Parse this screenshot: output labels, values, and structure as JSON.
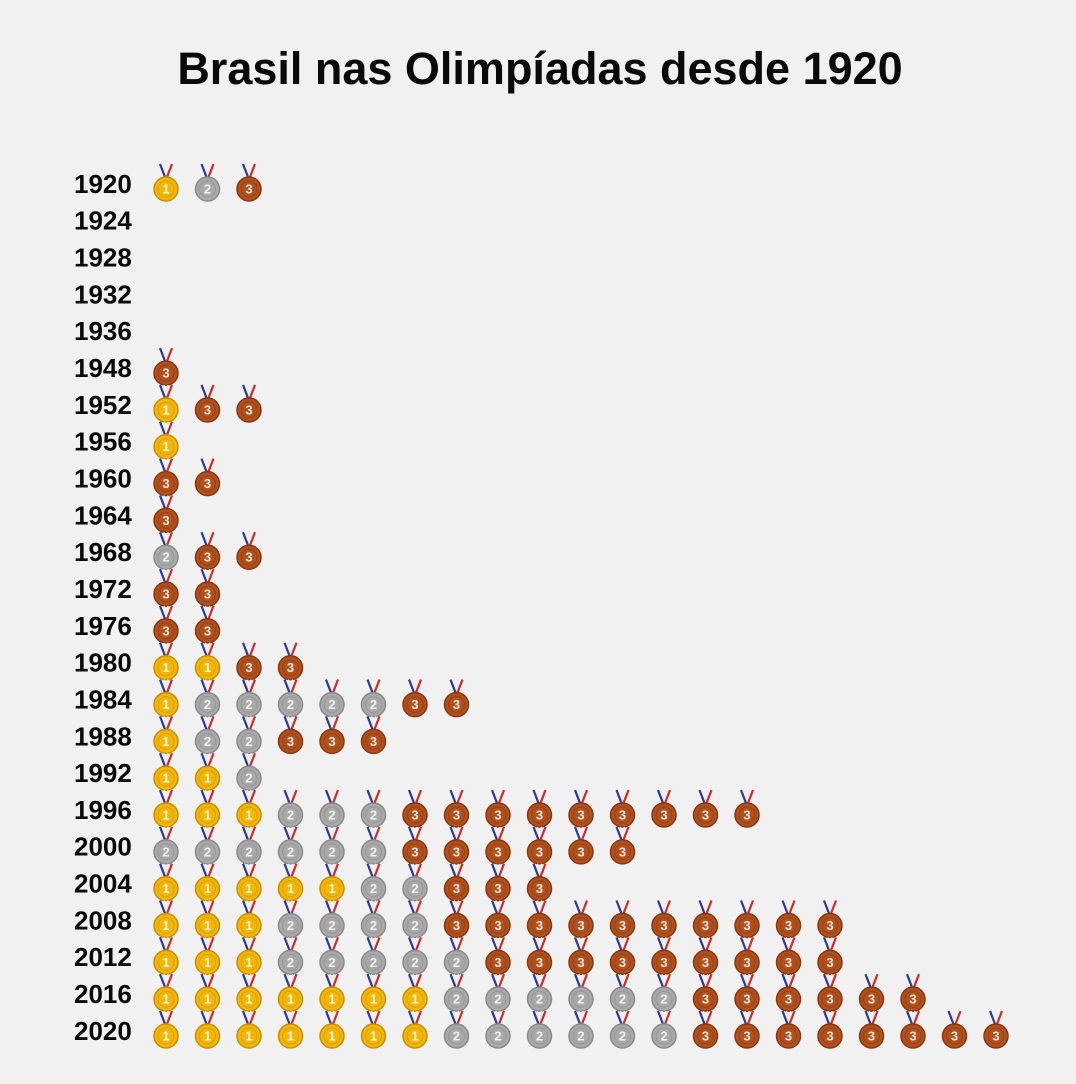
{
  "chart_data": {
    "type": "pictogram",
    "title": "Brasil nas Olimpíadas desde 1920",
    "categories": [
      "1920",
      "1924",
      "1928",
      "1932",
      "1936",
      "1948",
      "1952",
      "1956",
      "1960",
      "1964",
      "1968",
      "1972",
      "1976",
      "1980",
      "1984",
      "1988",
      "1992",
      "1996",
      "2000",
      "2004",
      "2008",
      "2012",
      "2016",
      "2020"
    ],
    "series": [
      {
        "name": "1",
        "color": "#f2b705",
        "values": [
          1,
          0,
          0,
          0,
          0,
          0,
          1,
          1,
          0,
          0,
          0,
          0,
          0,
          2,
          1,
          1,
          2,
          3,
          0,
          5,
          3,
          3,
          7,
          7
        ]
      },
      {
        "name": "2",
        "color": "#a9a9a9",
        "values": [
          1,
          0,
          0,
          0,
          0,
          0,
          0,
          0,
          0,
          0,
          1,
          0,
          0,
          0,
          5,
          2,
          1,
          3,
          6,
          2,
          4,
          5,
          6,
          6
        ]
      },
      {
        "name": "3",
        "color": "#b0501c",
        "values": [
          1,
          0,
          0,
          0,
          0,
          1,
          2,
          0,
          2,
          1,
          2,
          2,
          2,
          2,
          2,
          3,
          0,
          9,
          6,
          3,
          10,
          9,
          6,
          8
        ]
      }
    ]
  }
}
